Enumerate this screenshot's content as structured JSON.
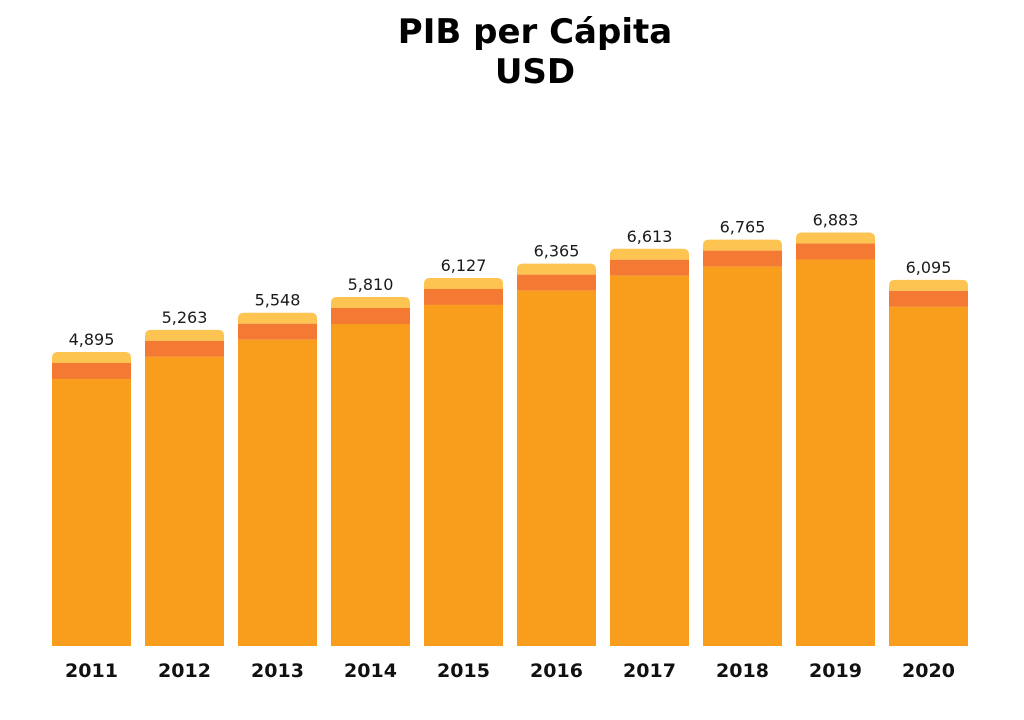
{
  "chart_data": {
    "type": "bar",
    "title": "PIB per Cápita",
    "subtitle": "USD",
    "categories": [
      "2011",
      "2012",
      "2013",
      "2014",
      "2015",
      "2016",
      "2017",
      "2018",
      "2019",
      "2020"
    ],
    "values": [
      4895,
      5263,
      5548,
      5810,
      6127,
      6365,
      6613,
      6765,
      6883,
      6095
    ],
    "value_labels": [
      "4,895",
      "5,263",
      "5,548",
      "5,810",
      "6,127",
      "6,365",
      "6,613",
      "6,765",
      "6,883",
      "6,095"
    ],
    "ylim": [
      0,
      7000
    ],
    "grid": false,
    "legend": "none",
    "colors": {
      "bar_body": "#F99D1C",
      "bar_band": "#F47932",
      "bar_cap": "#FDC452",
      "text": "#111111"
    }
  }
}
